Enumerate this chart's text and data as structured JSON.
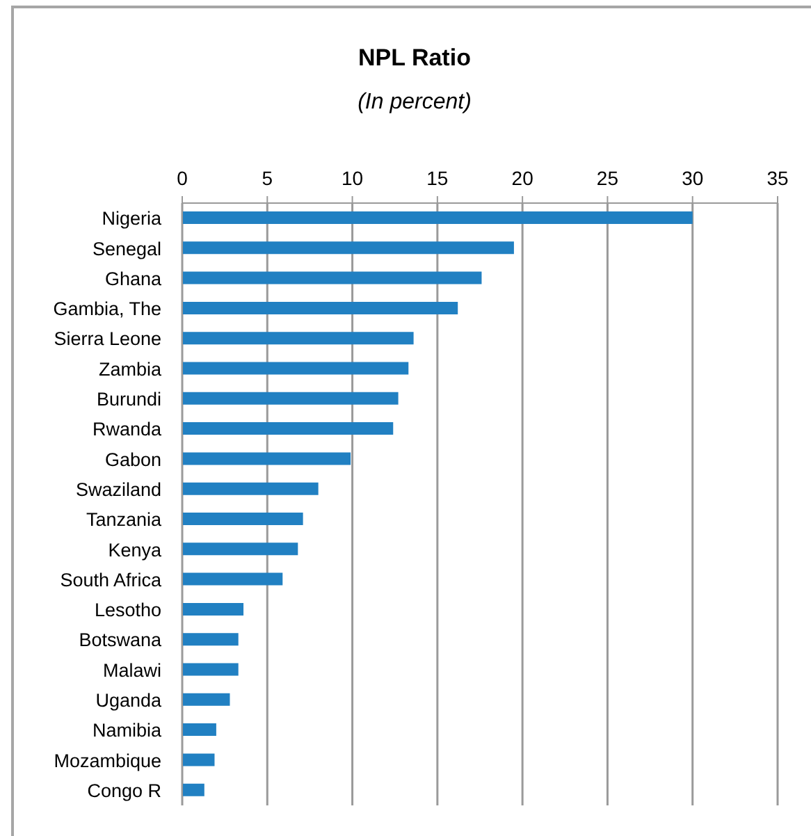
{
  "chart_data": {
    "type": "bar",
    "orientation": "horizontal",
    "title": "NPL Ratio",
    "subtitle": "(In percent)",
    "categories": [
      "Nigeria",
      "Senegal",
      "Ghana",
      "Gambia, The",
      "Sierra Leone",
      "Zambia",
      "Burundi",
      "Rwanda",
      "Gabon",
      "Swaziland",
      "Tanzania",
      "Kenya",
      "South Africa",
      "Lesotho",
      "Botswana",
      "Malawi",
      "Uganda",
      "Namibia",
      "Mozambique",
      "Congo R"
    ],
    "values": [
      30.0,
      19.5,
      17.6,
      16.2,
      13.6,
      13.3,
      12.7,
      12.4,
      9.9,
      8.0,
      7.1,
      6.8,
      5.9,
      3.6,
      3.3,
      3.3,
      2.8,
      2.0,
      1.9,
      1.3
    ],
    "color": "#2180c2",
    "xlim": [
      0,
      35
    ],
    "xticks": [
      0,
      5,
      10,
      15,
      20,
      25,
      30,
      35
    ],
    "grid": "x"
  }
}
